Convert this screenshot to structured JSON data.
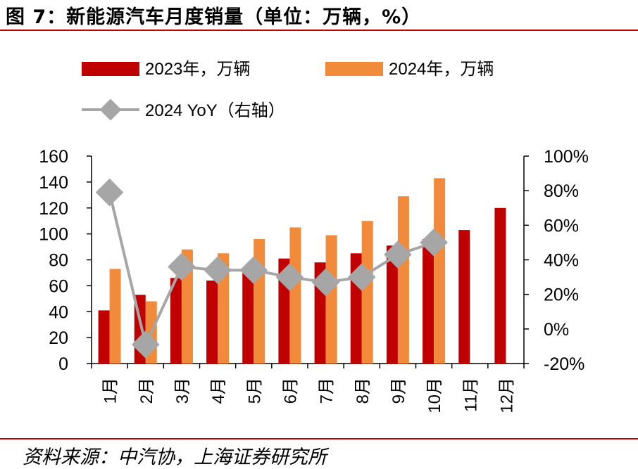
{
  "title": "图 7：新能源汽车月度销量（单位：万辆，%）",
  "source": "资料来源：中汽协，上海证券研究所",
  "colors": {
    "s2023": "#c00000",
    "s2024": "#f28a3c",
    "yoy": "#a6a6a6",
    "rule": "#c00000"
  },
  "chart_data": {
    "type": "bar",
    "categories": [
      "1月",
      "2月",
      "3月",
      "4月",
      "5月",
      "6月",
      "7月",
      "8月",
      "9月",
      "10月",
      "11月",
      "12月"
    ],
    "series": [
      {
        "name": "2023年，万辆",
        "type": "bar",
        "axis": "left",
        "values": [
          41,
          53,
          66,
          64,
          71,
          81,
          78,
          85,
          91,
          96,
          103,
          120
        ]
      },
      {
        "name": "2024年，万辆",
        "type": "bar",
        "axis": "left",
        "values": [
          73,
          48,
          88,
          85,
          96,
          105,
          99,
          110,
          129,
          143,
          null,
          null
        ]
      },
      {
        "name": "2024 YoY（右轴）",
        "type": "line",
        "axis": "right",
        "values": [
          79,
          -9,
          36,
          34,
          34,
          30,
          27,
          30,
          43,
          50,
          null,
          null
        ]
      }
    ],
    "yleft": {
      "min": 0,
      "max": 160,
      "ticks": [
        0,
        20,
        40,
        60,
        80,
        100,
        120,
        140,
        160
      ]
    },
    "yright": {
      "min": -20,
      "max": 100,
      "ticks": [
        -20,
        0,
        20,
        40,
        60,
        80,
        100
      ],
      "unit": "%"
    },
    "legend": "top",
    "grid": false
  }
}
